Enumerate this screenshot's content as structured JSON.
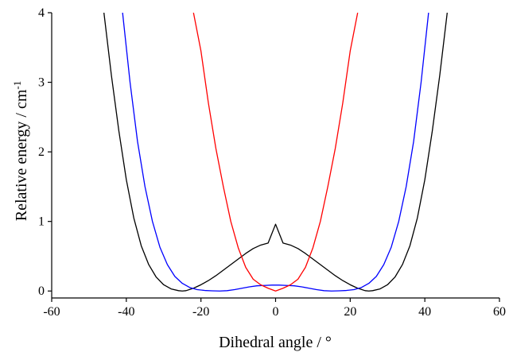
{
  "chart_data": {
    "type": "line",
    "title": "",
    "xlabel": "Dihedral angle / °",
    "ylabel": "Relative energy / cm",
    "ylabel_superscript": "-1",
    "xlim": [
      -60,
      60
    ],
    "ylim": [
      -0.1,
      4
    ],
    "x_ticks": [
      -60,
      -40,
      -20,
      0,
      20,
      40,
      60
    ],
    "y_ticks": [
      0,
      1,
      2,
      3,
      4
    ],
    "grid": false,
    "legend": "none",
    "series": [
      {
        "color": "#000000",
        "points": [
          [
            -46,
            4.0
          ],
          [
            -44,
            3.1
          ],
          [
            -42,
            2.3
          ],
          [
            -40,
            1.6
          ],
          [
            -38,
            1.05
          ],
          [
            -36,
            0.65
          ],
          [
            -34,
            0.38
          ],
          [
            -32,
            0.2
          ],
          [
            -30,
            0.09
          ],
          [
            -28,
            0.03
          ],
          [
            -26,
            0.005
          ],
          [
            -25,
            0.0
          ],
          [
            -24,
            0.005
          ],
          [
            -22,
            0.04
          ],
          [
            -20,
            0.09
          ],
          [
            -18,
            0.15
          ],
          [
            -16,
            0.22
          ],
          [
            -14,
            0.3
          ],
          [
            -12,
            0.38
          ],
          [
            -10,
            0.46
          ],
          [
            -8,
            0.54
          ],
          [
            -6,
            0.61
          ],
          [
            -4,
            0.66
          ],
          [
            -2,
            0.69
          ],
          [
            0,
            0.96
          ],
          [
            2,
            0.69
          ],
          [
            4,
            0.66
          ],
          [
            6,
            0.61
          ],
          [
            8,
            0.54
          ],
          [
            10,
            0.46
          ],
          [
            12,
            0.38
          ],
          [
            14,
            0.3
          ],
          [
            16,
            0.22
          ],
          [
            18,
            0.15
          ],
          [
            20,
            0.09
          ],
          [
            22,
            0.04
          ],
          [
            24,
            0.005
          ],
          [
            25,
            0.0
          ],
          [
            26,
            0.005
          ],
          [
            28,
            0.03
          ],
          [
            30,
            0.09
          ],
          [
            32,
            0.2
          ],
          [
            34,
            0.38
          ],
          [
            36,
            0.65
          ],
          [
            38,
            1.05
          ],
          [
            40,
            1.6
          ],
          [
            42,
            2.3
          ],
          [
            44,
            3.1
          ],
          [
            46,
            4.0
          ]
        ]
      },
      {
        "color": "#0000ff",
        "points": [
          [
            -41,
            4.0
          ],
          [
            -39,
            3.0
          ],
          [
            -37,
            2.15
          ],
          [
            -35,
            1.5
          ],
          [
            -33,
            1.0
          ],
          [
            -31,
            0.63
          ],
          [
            -29,
            0.38
          ],
          [
            -27,
            0.21
          ],
          [
            -25,
            0.11
          ],
          [
            -23,
            0.05
          ],
          [
            -21,
            0.02
          ],
          [
            -19,
            0.008
          ],
          [
            -17,
            0.003
          ],
          [
            -15,
            0.0
          ],
          [
            -13,
            0.005
          ],
          [
            -11,
            0.02
          ],
          [
            -9,
            0.04
          ],
          [
            -7,
            0.06
          ],
          [
            -5,
            0.075
          ],
          [
            -3,
            0.08
          ],
          [
            -1,
            0.085
          ],
          [
            0,
            0.085
          ],
          [
            1,
            0.085
          ],
          [
            3,
            0.08
          ],
          [
            5,
            0.075
          ],
          [
            7,
            0.06
          ],
          [
            9,
            0.04
          ],
          [
            11,
            0.02
          ],
          [
            13,
            0.005
          ],
          [
            15,
            0.0
          ],
          [
            17,
            0.003
          ],
          [
            19,
            0.008
          ],
          [
            21,
            0.02
          ],
          [
            23,
            0.05
          ],
          [
            25,
            0.11
          ],
          [
            27,
            0.21
          ],
          [
            29,
            0.38
          ],
          [
            31,
            0.63
          ],
          [
            33,
            1.0
          ],
          [
            35,
            1.5
          ],
          [
            37,
            2.15
          ],
          [
            39,
            3.0
          ],
          [
            41,
            4.0
          ]
        ]
      },
      {
        "color": "#ff0000",
        "points": [
          [
            -22,
            4.0
          ],
          [
            -20,
            3.45
          ],
          [
            -18,
            2.7
          ],
          [
            -16,
            2.05
          ],
          [
            -14,
            1.5
          ],
          [
            -12,
            1.0
          ],
          [
            -10,
            0.62
          ],
          [
            -8,
            0.34
          ],
          [
            -6,
            0.17
          ],
          [
            -4,
            0.09
          ],
          [
            -2,
            0.04
          ],
          [
            0,
            0.0
          ],
          [
            2,
            0.04
          ],
          [
            4,
            0.09
          ],
          [
            6,
            0.17
          ],
          [
            8,
            0.34
          ],
          [
            10,
            0.62
          ],
          [
            12,
            1.0
          ],
          [
            14,
            1.5
          ],
          [
            16,
            2.05
          ],
          [
            18,
            2.7
          ],
          [
            20,
            3.45
          ],
          [
            22,
            4.0
          ]
        ]
      }
    ]
  }
}
